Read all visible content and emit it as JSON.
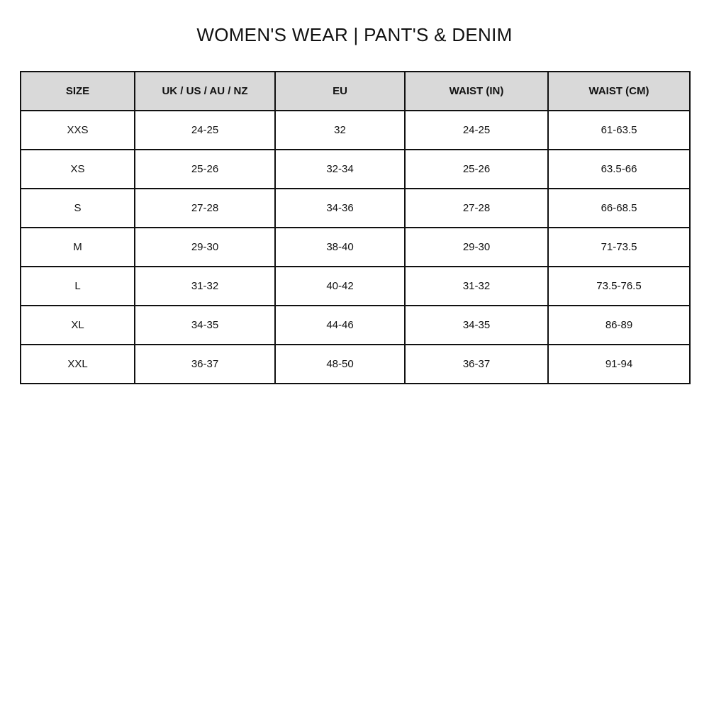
{
  "title": "WOMEN'S WEAR | PANT'S & DENIM",
  "table": {
    "headers": [
      "SIZE",
      "UK / US / AU / NZ",
      "EU",
      "WAIST (IN)",
      "WAIST (CM)"
    ],
    "rows": [
      [
        "XXS",
        "24-25",
        "32",
        "24-25",
        "61-63.5"
      ],
      [
        "XS",
        "25-26",
        "32-34",
        "25-26",
        "63.5-66"
      ],
      [
        "S",
        "27-28",
        "34-36",
        "27-28",
        "66-68.5"
      ],
      [
        "M",
        "29-30",
        "38-40",
        "29-30",
        "71-73.5"
      ],
      [
        "L",
        "31-32",
        "40-42",
        "31-32",
        "73.5-76.5"
      ],
      [
        "XL",
        "34-35",
        "44-46",
        "34-35",
        "86-89"
      ],
      [
        "XXL",
        "36-37",
        "48-50",
        "36-37",
        "91-94"
      ]
    ],
    "header_background": "#d9d9d9",
    "border_color": "#111111"
  }
}
